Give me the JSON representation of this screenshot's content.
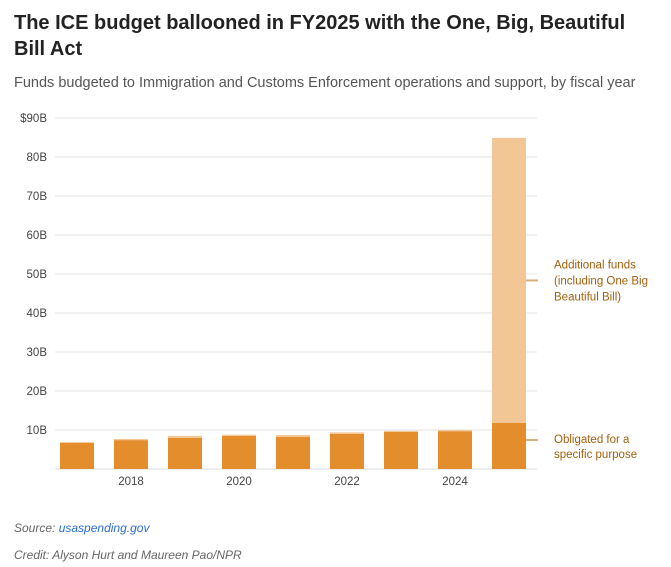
{
  "title": "The ICE budget ballooned in FY2025 with the One, Big, Beautiful Bill Act",
  "subtitle": "Funds budgeted to Immigration and Customs Enforcement operations and support, by fiscal year",
  "source_label": "Source:",
  "source_link": "usaspending.gov",
  "credit": "Credit: Alyson Hurt and Maureen Pao/NPR",
  "colors": {
    "obligated": "#e38d2c",
    "additional": "#f2c795",
    "annotation": "#a35f0c"
  },
  "chart_data": {
    "type": "bar",
    "stacked": true,
    "categories": [
      "2017",
      "2018",
      "2019",
      "2020",
      "2021",
      "2022",
      "2023",
      "2024",
      "2025"
    ],
    "xtick_labels": [
      "2018",
      "2020",
      "2022",
      "2024"
    ],
    "ytick_labels": [
      "10B",
      "20B",
      "30B",
      "40B",
      "50B",
      "60B",
      "70B",
      "80B",
      "$90B"
    ],
    "ytick_values": [
      10,
      20,
      30,
      40,
      50,
      60,
      70,
      80,
      90
    ],
    "ylim": [
      0,
      90
    ],
    "unit": "billion USD",
    "series": [
      {
        "name": "Obligated for a specific purpose",
        "label_lines": [
          "Obligated for a",
          "specific purpose"
        ],
        "values": [
          6.7,
          7.4,
          8.0,
          8.5,
          8.2,
          9.0,
          9.5,
          9.7,
          11.8
        ]
      },
      {
        "name": "Additional funds (including One Big Beautiful Bill)",
        "label_lines": [
          "Additional funds",
          "(including One Big",
          "Beautiful Bill)"
        ],
        "values": [
          0.2,
          0.3,
          0.5,
          0.3,
          0.5,
          0.4,
          0.3,
          0.3,
          73.1
        ]
      }
    ],
    "grid": true
  }
}
